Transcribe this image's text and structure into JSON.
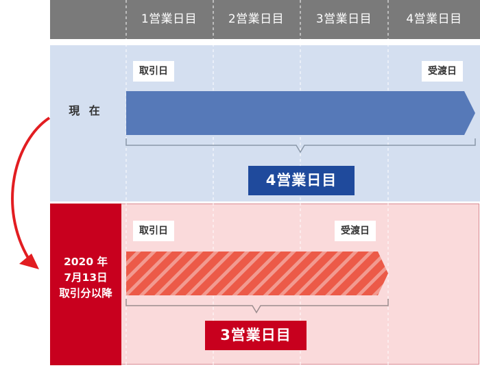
{
  "header": {
    "days": [
      "1営業日目",
      "2営業日目",
      "3営業日目",
      "4営業日目"
    ]
  },
  "current": {
    "label": "現 在",
    "trade_tag": "取引日",
    "delivery_tag": "受渡日",
    "result": "4営業日目",
    "bar_color": "#5679b8",
    "result_color": "#1f4a9c"
  },
  "new_rule": {
    "label_line1": "2020 年",
    "label_line2": "7月13日",
    "label_line3": "取引分以降",
    "trade_tag": "取引日",
    "delivery_tag": "受渡日",
    "result": "3営業日目",
    "bar_color": "#ec5a48",
    "result_color": "#c8001e",
    "arrow_color": "#e21d21"
  }
}
